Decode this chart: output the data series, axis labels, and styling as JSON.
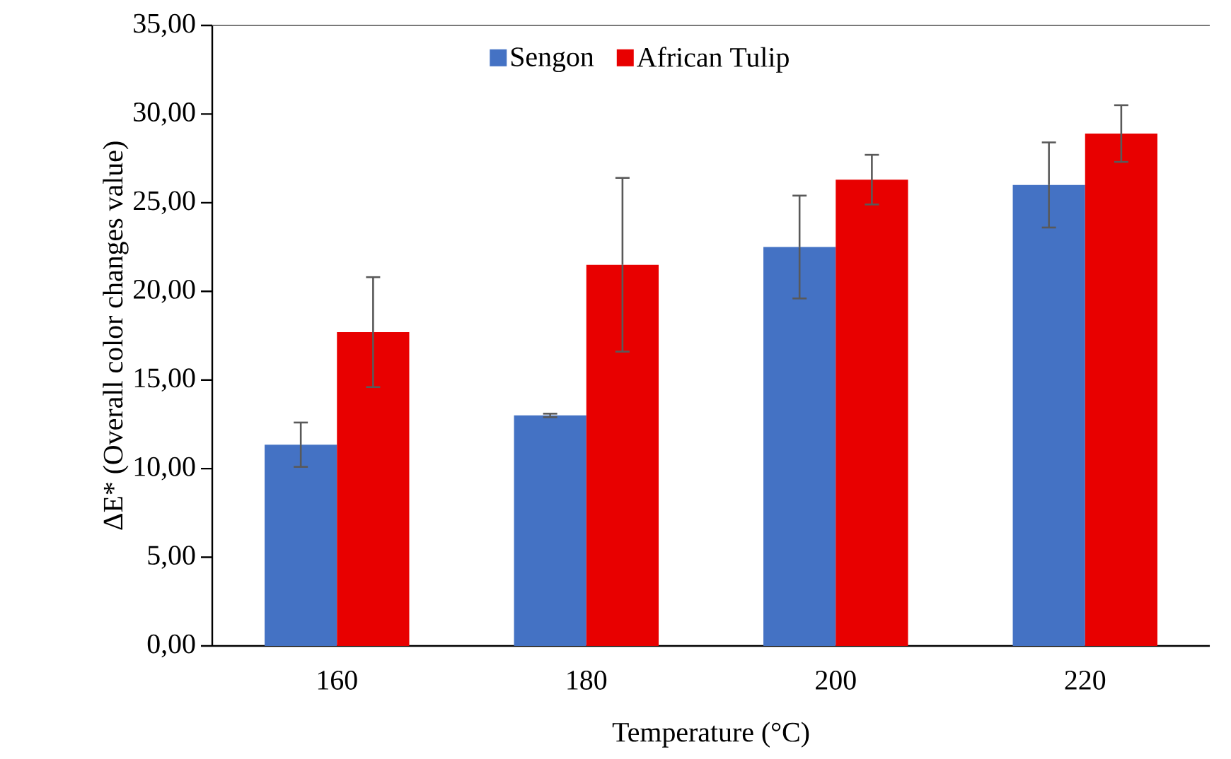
{
  "chart_data": {
    "type": "bar",
    "xlabel": "Temperature (°C)",
    "ylabel": "ΔE* (Overall color changes value)",
    "categories": [
      "160",
      "180",
      "200",
      "220"
    ],
    "series": [
      {
        "name": "Sengon",
        "color": "#4472c4",
        "values": [
          11.35,
          13.0,
          22.5,
          26.0
        ],
        "errors": [
          1.25,
          0.1,
          2.9,
          2.4
        ]
      },
      {
        "name": "African Tulip",
        "color": "#e80000",
        "values": [
          17.7,
          21.5,
          26.3,
          28.9
        ],
        "errors": [
          3.1,
          4.9,
          1.4,
          1.6
        ]
      }
    ],
    "ylim": [
      0,
      35
    ],
    "yticks": [
      {
        "value": 0,
        "label": "0,00"
      },
      {
        "value": 5,
        "label": "5,00"
      },
      {
        "value": 10,
        "label": "10,00"
      },
      {
        "value": 15,
        "label": "15,00"
      },
      {
        "value": 20,
        "label": "20,00"
      },
      {
        "value": 25,
        "label": "25,00"
      },
      {
        "value": 30,
        "label": "30,00"
      },
      {
        "value": 35,
        "label": "35,00"
      }
    ],
    "legend": "top"
  }
}
